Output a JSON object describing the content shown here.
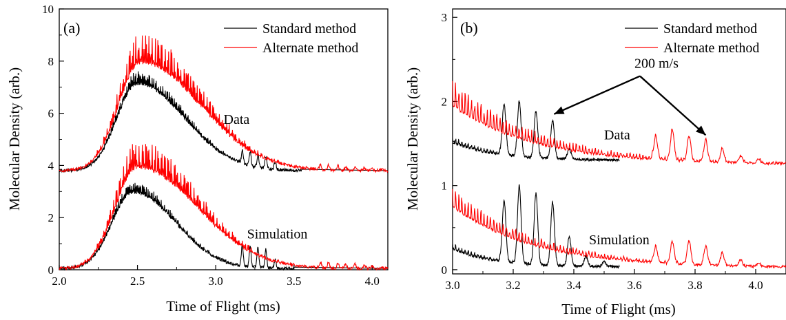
{
  "colors": {
    "standard": "#000000",
    "alternate": "#ff0000",
    "axis": "#000000",
    "background": "#ffffff"
  },
  "chart_data": [
    {
      "type": "line",
      "panel_label": "(a)",
      "xlabel": "Time of Flight (ms)",
      "ylabel": "Molecular Density (arb.)",
      "xlim": [
        2.0,
        4.1
      ],
      "ylim": [
        0,
        10
      ],
      "xticks": [
        "2.0",
        "2.5",
        "3.0",
        "3.5",
        "4.0"
      ],
      "xtick_values": [
        2.0,
        2.5,
        3.0,
        3.5,
        4.0
      ],
      "yticks": [
        "0",
        "2",
        "4",
        "6",
        "8",
        "10"
      ],
      "ytick_values": [
        0,
        2,
        4,
        6,
        8,
        10
      ],
      "grid": false,
      "legend_position": "top-right",
      "series": [
        {
          "name": "Standard method",
          "color": "#000000"
        },
        {
          "name": "Alternate method",
          "color": "#ff0000"
        }
      ],
      "curves": [
        {
          "group": "Data",
          "series": "Standard method",
          "baseline": 3.8,
          "peak_time": 2.5,
          "peak_height": 3.7,
          "rise_width": 0.13,
          "decay_width": 0.3,
          "noise": 0.45,
          "spikes_t": [
            3.17,
            3.22,
            3.27,
            3.32,
            3.38
          ],
          "spikes_h": [
            0.5,
            0.55,
            0.5,
            0.45,
            0.3
          ],
          "end": 3.55
        },
        {
          "group": "Data",
          "series": "Alternate method",
          "baseline": 3.8,
          "peak_time": 2.52,
          "peak_height": 4.6,
          "rise_width": 0.14,
          "decay_width": 0.38,
          "noise": 1.1,
          "spikes_t": [
            3.67,
            3.72,
            3.78,
            3.83,
            3.89,
            3.95,
            4.0,
            4.06
          ],
          "spikes_h": [
            0.2,
            0.2,
            0.18,
            0.16,
            0.14,
            0.1,
            0.08,
            0.05
          ],
          "end": 4.1
        },
        {
          "group": "Simulation",
          "series": "Standard method",
          "baseline": 0.05,
          "peak_time": 2.47,
          "peak_height": 3.25,
          "rise_width": 0.13,
          "decay_width": 0.27,
          "noise": 0.35,
          "spikes_t": [
            3.17,
            3.22,
            3.27,
            3.32,
            3.38
          ],
          "spikes_h": [
            0.8,
            0.85,
            0.8,
            0.7,
            0.35
          ],
          "end": 3.5
        },
        {
          "group": "Simulation",
          "series": "Alternate method",
          "baseline": 0.05,
          "peak_time": 2.5,
          "peak_height": 4.3,
          "rise_width": 0.14,
          "decay_width": 0.38,
          "noise": 1.0,
          "spikes_t": [
            3.67,
            3.72,
            3.78,
            3.83,
            3.89,
            3.95,
            4.0,
            4.06
          ],
          "spikes_h": [
            0.22,
            0.22,
            0.2,
            0.18,
            0.15,
            0.12,
            0.09,
            0.05
          ],
          "end": 4.1
        }
      ],
      "annotations": [
        {
          "text": "Data",
          "x": 3.05,
          "y": 5.6
        },
        {
          "text": "Simulation",
          "x": 3.2,
          "y": 1.2
        }
      ]
    },
    {
      "type": "line",
      "panel_label": "(b)",
      "xlabel": "Time of Flight (ms)",
      "ylabel": "Molecular Density (arb.)",
      "xlim": [
        3.0,
        4.1
      ],
      "ylim": [
        -0.05,
        3.1
      ],
      "xticks": [
        "3.0",
        "3.2",
        "3.4",
        "3.6",
        "3.8",
        "4.0"
      ],
      "xtick_values": [
        3.0,
        3.2,
        3.4,
        3.6,
        3.8,
        4.0
      ],
      "yticks": [
        "0",
        "1",
        "2",
        "3"
      ],
      "ytick_values": [
        0,
        1,
        2,
        3
      ],
      "grid": false,
      "legend_position": "top-right",
      "series": [
        {
          "name": "Standard method",
          "color": "#000000"
        },
        {
          "name": "Alternate method",
          "color": "#ff0000"
        }
      ],
      "curves": [
        {
          "group": "Data",
          "series": "Standard method",
          "start": 3.0,
          "end": 3.55,
          "base_start": 1.52,
          "base_end": 1.3,
          "noise": 0.06,
          "spikes_t": [
            3.17,
            3.22,
            3.275,
            3.33,
            3.385
          ],
          "spikes_h": [
            0.6,
            0.65,
            0.55,
            0.45,
            0.12
          ]
        },
        {
          "group": "Data",
          "series": "Alternate method",
          "start": 3.0,
          "end": 4.1,
          "base_start": 1.95,
          "base_end": 1.25,
          "noise": 0.3,
          "spikes_t": [
            3.67,
            3.725,
            3.78,
            3.835,
            3.89,
            3.95,
            4.01
          ],
          "spikes_h": [
            0.28,
            0.36,
            0.3,
            0.26,
            0.16,
            0.08,
            0.04
          ]
        },
        {
          "group": "Simulation",
          "series": "Standard method",
          "start": 3.0,
          "end": 3.55,
          "base_start": 0.25,
          "base_end": 0.03,
          "noise": 0.05,
          "spikes_t": [
            3.17,
            3.22,
            3.275,
            3.33,
            3.385,
            3.44,
            3.5
          ],
          "spikes_h": [
            0.72,
            0.92,
            0.85,
            0.75,
            0.35,
            0.12,
            0.06
          ]
        },
        {
          "group": "Simulation",
          "series": "Alternate method",
          "start": 3.0,
          "end": 4.1,
          "base_start": 0.75,
          "base_end": 0.02,
          "noise": 0.22,
          "spikes_t": [
            3.67,
            3.725,
            3.78,
            3.835,
            3.89,
            3.95,
            4.01
          ],
          "spikes_h": [
            0.18,
            0.26,
            0.28,
            0.22,
            0.15,
            0.07,
            0.03
          ]
        }
      ],
      "annotations": [
        {
          "text": "Data",
          "x": 3.5,
          "y": 1.55
        },
        {
          "text": "Simulation",
          "x": 3.45,
          "y": 0.3
        },
        {
          "text": "200 m/s",
          "x": 3.6,
          "y": 2.4,
          "arrows_to": [
            {
              "x": 3.335,
              "y": 1.85
            },
            {
              "x": 3.835,
              "y": 1.6
            }
          ]
        }
      ]
    }
  ]
}
